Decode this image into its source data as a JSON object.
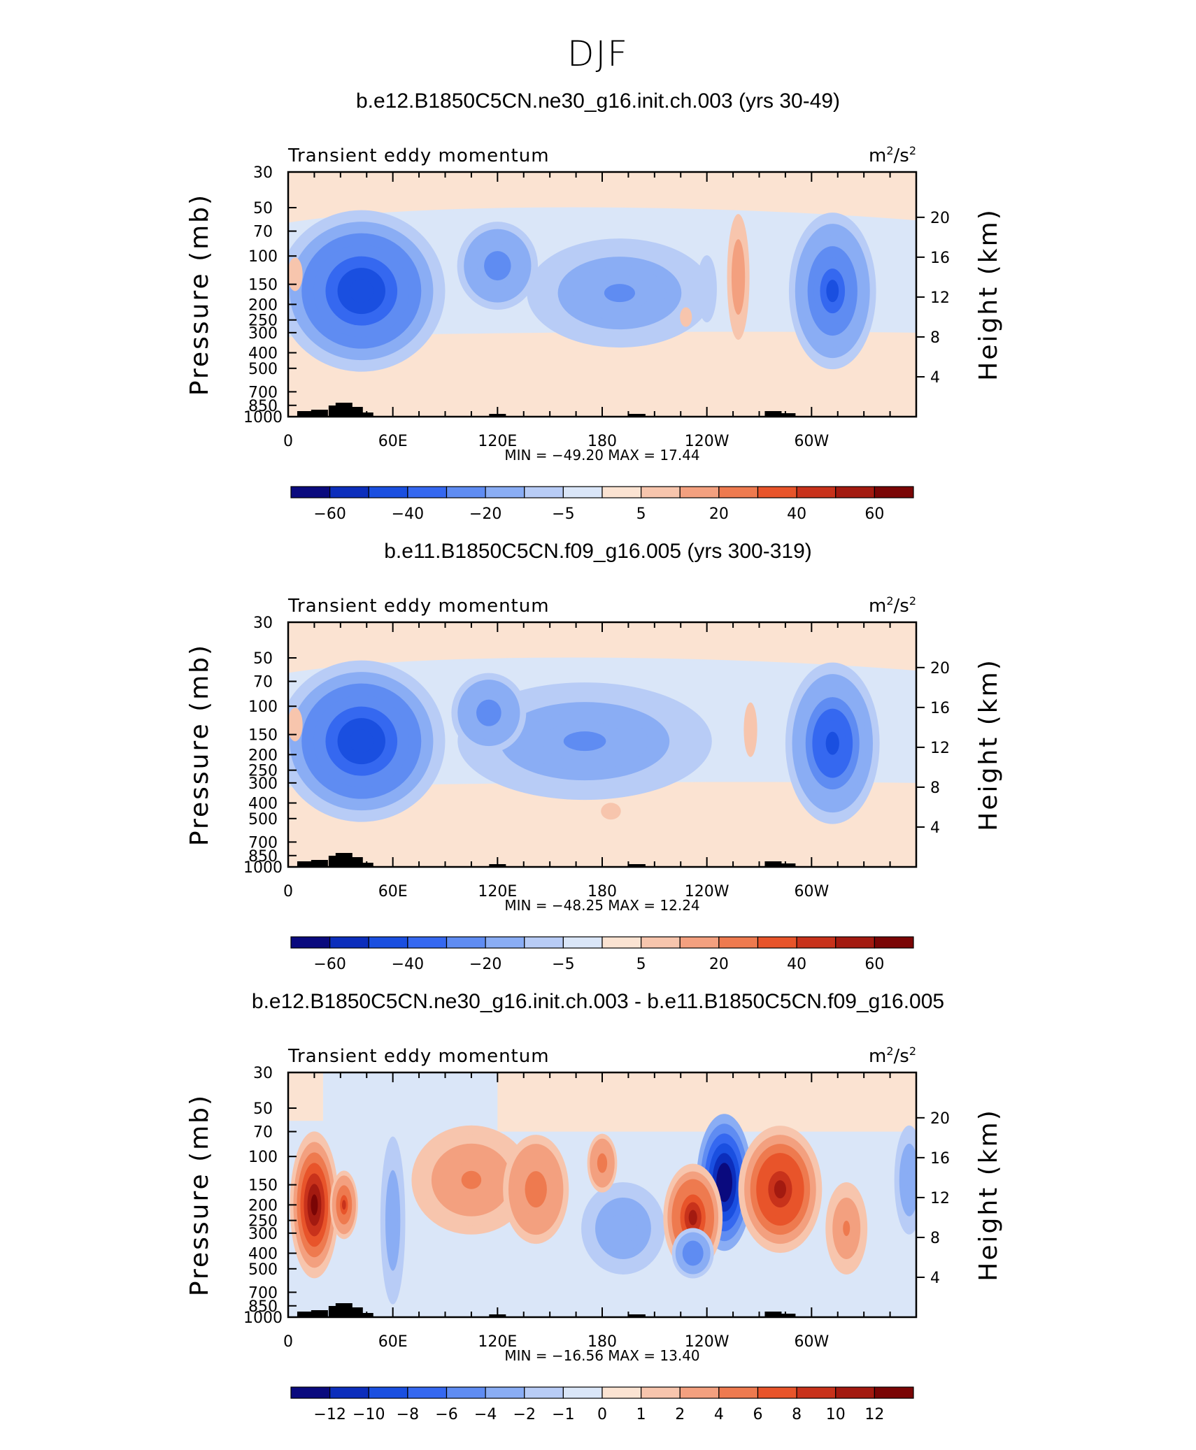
{
  "suptitle": "DJF",
  "panels": [
    {
      "title": "b.e12.B1850C5CN.ne30_g16.init.ch.003 (yrs 30-49)",
      "left_label": "Transient eddy momentum",
      "units_base": "m",
      "units_exp1": "2",
      "units_mid": "/s",
      "units_exp2": "2",
      "stats": "MIN = −49.20   MAX =   17.44",
      "colorbar_labels": [
        "−60",
        "−40",
        "−20",
        "−5",
        "5",
        "20",
        "40",
        "60"
      ],
      "blobs": [
        {
          "lon": 42,
          "p": 165,
          "rx": 48,
          "ry": 33,
          "v": -49
        },
        {
          "lon": 190,
          "p": 170,
          "rx": 62,
          "ry": 26,
          "v": -22
        },
        {
          "lon": 120,
          "p": 115,
          "rx": 27,
          "ry": 21,
          "v": -26
        },
        {
          "lon": 312,
          "p": 165,
          "rx": 25,
          "ry": 32,
          "v": -42
        },
        {
          "lon": 258,
          "p": 135,
          "rx": 9,
          "ry": 36,
          "v": 14
        },
        {
          "lon": 240,
          "p": 160,
          "rx": 10,
          "ry": 24,
          "v": -10
        },
        {
          "lon": 4,
          "p": 130,
          "rx": 10,
          "ry": 16,
          "v": 8
        },
        {
          "lon": 228,
          "p": 240,
          "rx": 12,
          "ry": 14,
          "v": 6
        }
      ]
    },
    {
      "title": "b.e11.B1850C5CN.f09_g16.005 (yrs 300-319)",
      "left_label": "Transient eddy momentum",
      "units_base": "m",
      "units_exp1": "2",
      "units_mid": "/s",
      "units_exp2": "2",
      "stats": "MIN = −48.25   MAX =   12.24",
      "colorbar_labels": [
        "−60",
        "−40",
        "−20",
        "−5",
        "5",
        "20",
        "40",
        "60"
      ],
      "blobs": [
        {
          "lon": 42,
          "p": 165,
          "rx": 48,
          "ry": 33,
          "v": -48
        },
        {
          "lon": 170,
          "p": 165,
          "rx": 85,
          "ry": 28,
          "v": -22
        },
        {
          "lon": 115,
          "p": 110,
          "rx": 25,
          "ry": 19,
          "v": -28
        },
        {
          "lon": 312,
          "p": 170,
          "rx": 27,
          "ry": 33,
          "v": -44
        },
        {
          "lon": 265,
          "p": 140,
          "rx": 9,
          "ry": 26,
          "v": 7
        },
        {
          "lon": 4,
          "p": 130,
          "rx": 10,
          "ry": 16,
          "v": 8
        },
        {
          "lon": 185,
          "p": 450,
          "rx": 20,
          "ry": 12,
          "v": 6
        }
      ]
    },
    {
      "title": "b.e12.B1850C5CN.ne30_g16.init.ch.003 - b.e11.B1850C5CN.f09_g16.005",
      "left_label": "Transient eddy momentum",
      "units_base": "m",
      "units_exp1": "2",
      "units_mid": "/s",
      "units_exp2": "2",
      "stats": "MIN = −16.56   MAX =   13.40",
      "colorbar_labels": [
        "−12",
        "−10",
        "−8",
        "−6",
        "−4",
        "−2",
        "−1",
        "0",
        "1",
        "2",
        "4",
        "6",
        "8",
        "10",
        "12"
      ],
      "blobs": [
        {
          "lon": 15,
          "p": 200,
          "rx": 14,
          "ry": 30,
          "v": 13
        },
        {
          "lon": 32,
          "p": 200,
          "rx": 8,
          "ry": 14,
          "v": 8
        },
        {
          "lon": 60,
          "p": 250,
          "rx": 10,
          "ry": 48,
          "v": -3
        },
        {
          "lon": 105,
          "p": 140,
          "rx": 40,
          "ry": 26,
          "v": 4
        },
        {
          "lon": 142,
          "p": 160,
          "rx": 22,
          "ry": 26,
          "v": 5
        },
        {
          "lon": 192,
          "p": 280,
          "rx": 28,
          "ry": 22,
          "v": -4
        },
        {
          "lon": 250,
          "p": 145,
          "rx": 16,
          "ry": 28,
          "v": -16
        },
        {
          "lon": 232,
          "p": 240,
          "rx": 17,
          "ry": 22,
          "v": 10
        },
        {
          "lon": 282,
          "p": 160,
          "rx": 24,
          "ry": 26,
          "v": 11
        },
        {
          "lon": 232,
          "p": 400,
          "rx": 14,
          "ry": 12,
          "v": -6
        },
        {
          "lon": 356,
          "p": 140,
          "rx": 10,
          "ry": 26,
          "v": -4
        },
        {
          "lon": 320,
          "p": 280,
          "rx": 14,
          "ry": 22,
          "v": 4
        },
        {
          "lon": 180,
          "p": 110,
          "rx": 10,
          "ry": 14,
          "v": 5
        }
      ]
    }
  ],
  "chart_data": {
    "type": "heatmap",
    "title": "DJF",
    "variable": "Transient eddy momentum",
    "units": "m^2/s^2",
    "ylabel_left": "Pressure (mb)",
    "ylabel_right": "Height (km)",
    "x_ticks": [
      "0",
      "60E",
      "120E",
      "180",
      "120W",
      "60W"
    ],
    "x_tick_values": [
      0,
      60,
      120,
      180,
      240,
      300
    ],
    "xlim": [
      0,
      360
    ],
    "y_ticks": [
      "30",
      "50",
      "70",
      "100",
      "150",
      "200",
      "250",
      "300",
      "400",
      "500",
      "700",
      "850",
      "1000"
    ],
    "y_tick_values": [
      30,
      50,
      70,
      100,
      150,
      200,
      250,
      300,
      400,
      500,
      700,
      850,
      1000
    ],
    "ylim": [
      1000,
      30
    ],
    "height_ticks": [
      "20",
      "16",
      "12",
      "8",
      "4"
    ],
    "height_tick_values": [
      20,
      16,
      12,
      8,
      4
    ],
    "panels": [
      {
        "name": "b.e12.B1850C5CN.ne30_g16.init.ch.003 (yrs 30-49)",
        "min": -49.2,
        "max": 17.44,
        "levels": [
          -70,
          -60,
          -50,
          -40,
          -30,
          -20,
          -10,
          -5,
          0,
          5,
          10,
          20,
          30,
          40,
          50,
          60,
          70
        ]
      },
      {
        "name": "b.e11.B1850C5CN.f09_g16.005 (yrs 300-319)",
        "min": -48.25,
        "max": 12.24,
        "levels": [
          -70,
          -60,
          -50,
          -40,
          -30,
          -20,
          -10,
          -5,
          0,
          5,
          10,
          20,
          30,
          40,
          50,
          60,
          70
        ]
      },
      {
        "name": "b.e12.B1850C5CN.ne30_g16.init.ch.003 - b.e11.B1850C5CN.f09_g16.005",
        "min": -16.56,
        "max": 13.4,
        "levels": [
          -14,
          -12,
          -10,
          -8,
          -6,
          -4,
          -2,
          -1,
          0,
          1,
          2,
          4,
          6,
          8,
          10,
          12,
          14
        ]
      }
    ]
  },
  "colors": {
    "palette": [
      "#0a0a7e",
      "#0c2ebc",
      "#1a4fe0",
      "#3568f0",
      "#5f8cf2",
      "#8aadf4",
      "#b8ccf6",
      "#dae6f8",
      "#fbe3d2",
      "#f7c5ad",
      "#f3a07f",
      "#ee7a4f",
      "#e8542a",
      "#c8321b",
      "#a31a10",
      "#7a0505"
    ],
    "land": "#000000",
    "neutral_positive": "#fbe3d2",
    "neutral_negative": "#dae6f8"
  }
}
